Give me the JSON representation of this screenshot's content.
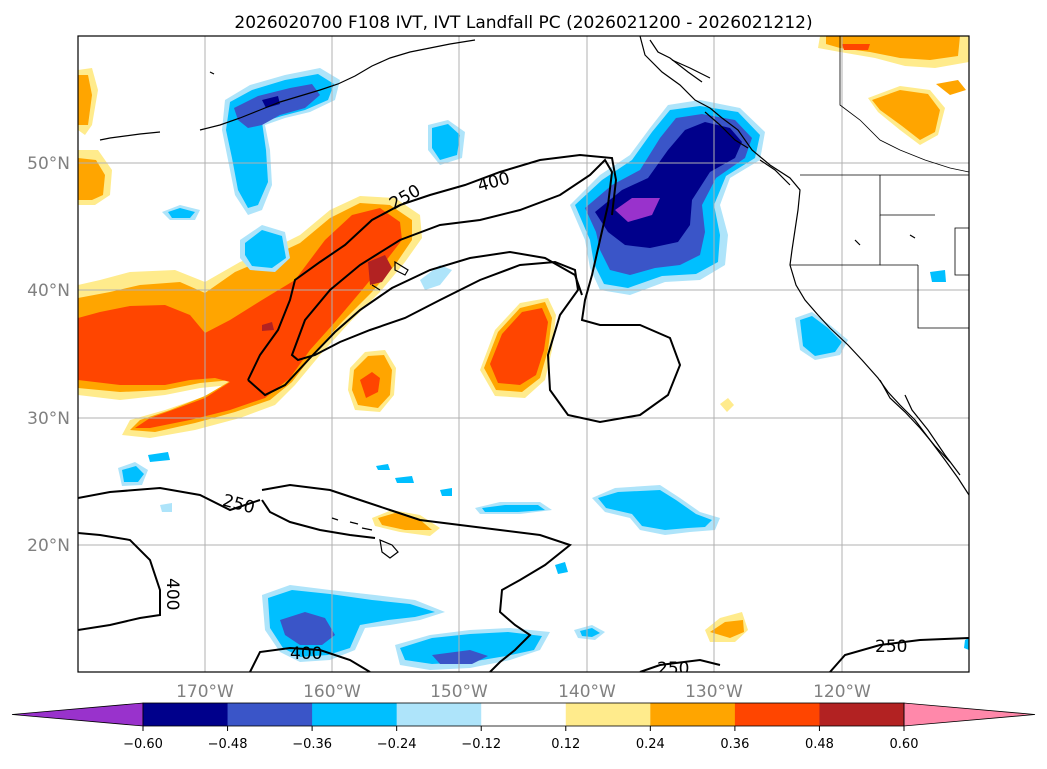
{
  "title": "2026020700 F108 IVT, IVT Landfall PC (2026021200 - 2026021212)",
  "map": {
    "lon_labels": [
      "170°W",
      "160°W",
      "150°W",
      "140°W",
      "130°W",
      "120°W"
    ],
    "lat_labels": [
      "50°N",
      "40°N",
      "30°N",
      "20°N"
    ],
    "lon_range": [
      -180,
      -110
    ],
    "lat_range": [
      10,
      60
    ],
    "gridlines": true,
    "tick_label_color": "#808080"
  },
  "contours": {
    "labels": [
      "250",
      "400",
      "250",
      "400",
      "400",
      "250",
      "250"
    ]
  },
  "colorbar": {
    "tick_labels": [
      "−0.60",
      "−0.48",
      "−0.36",
      "−0.24",
      "−0.12",
      "0.12",
      "0.24",
      "0.36",
      "0.48",
      "0.60"
    ],
    "colors": [
      "#9932cc",
      "#00008b",
      "#3a55c8",
      "#00bfff",
      "#aee4fa",
      "#ffffff",
      "#ffeb8c",
      "#ffa500",
      "#ff4500",
      "#b22222",
      "#ff88aa"
    ],
    "extend": "both"
  },
  "colors": {
    "land_outline": "#000000",
    "grid": "#b0b0b0"
  }
}
